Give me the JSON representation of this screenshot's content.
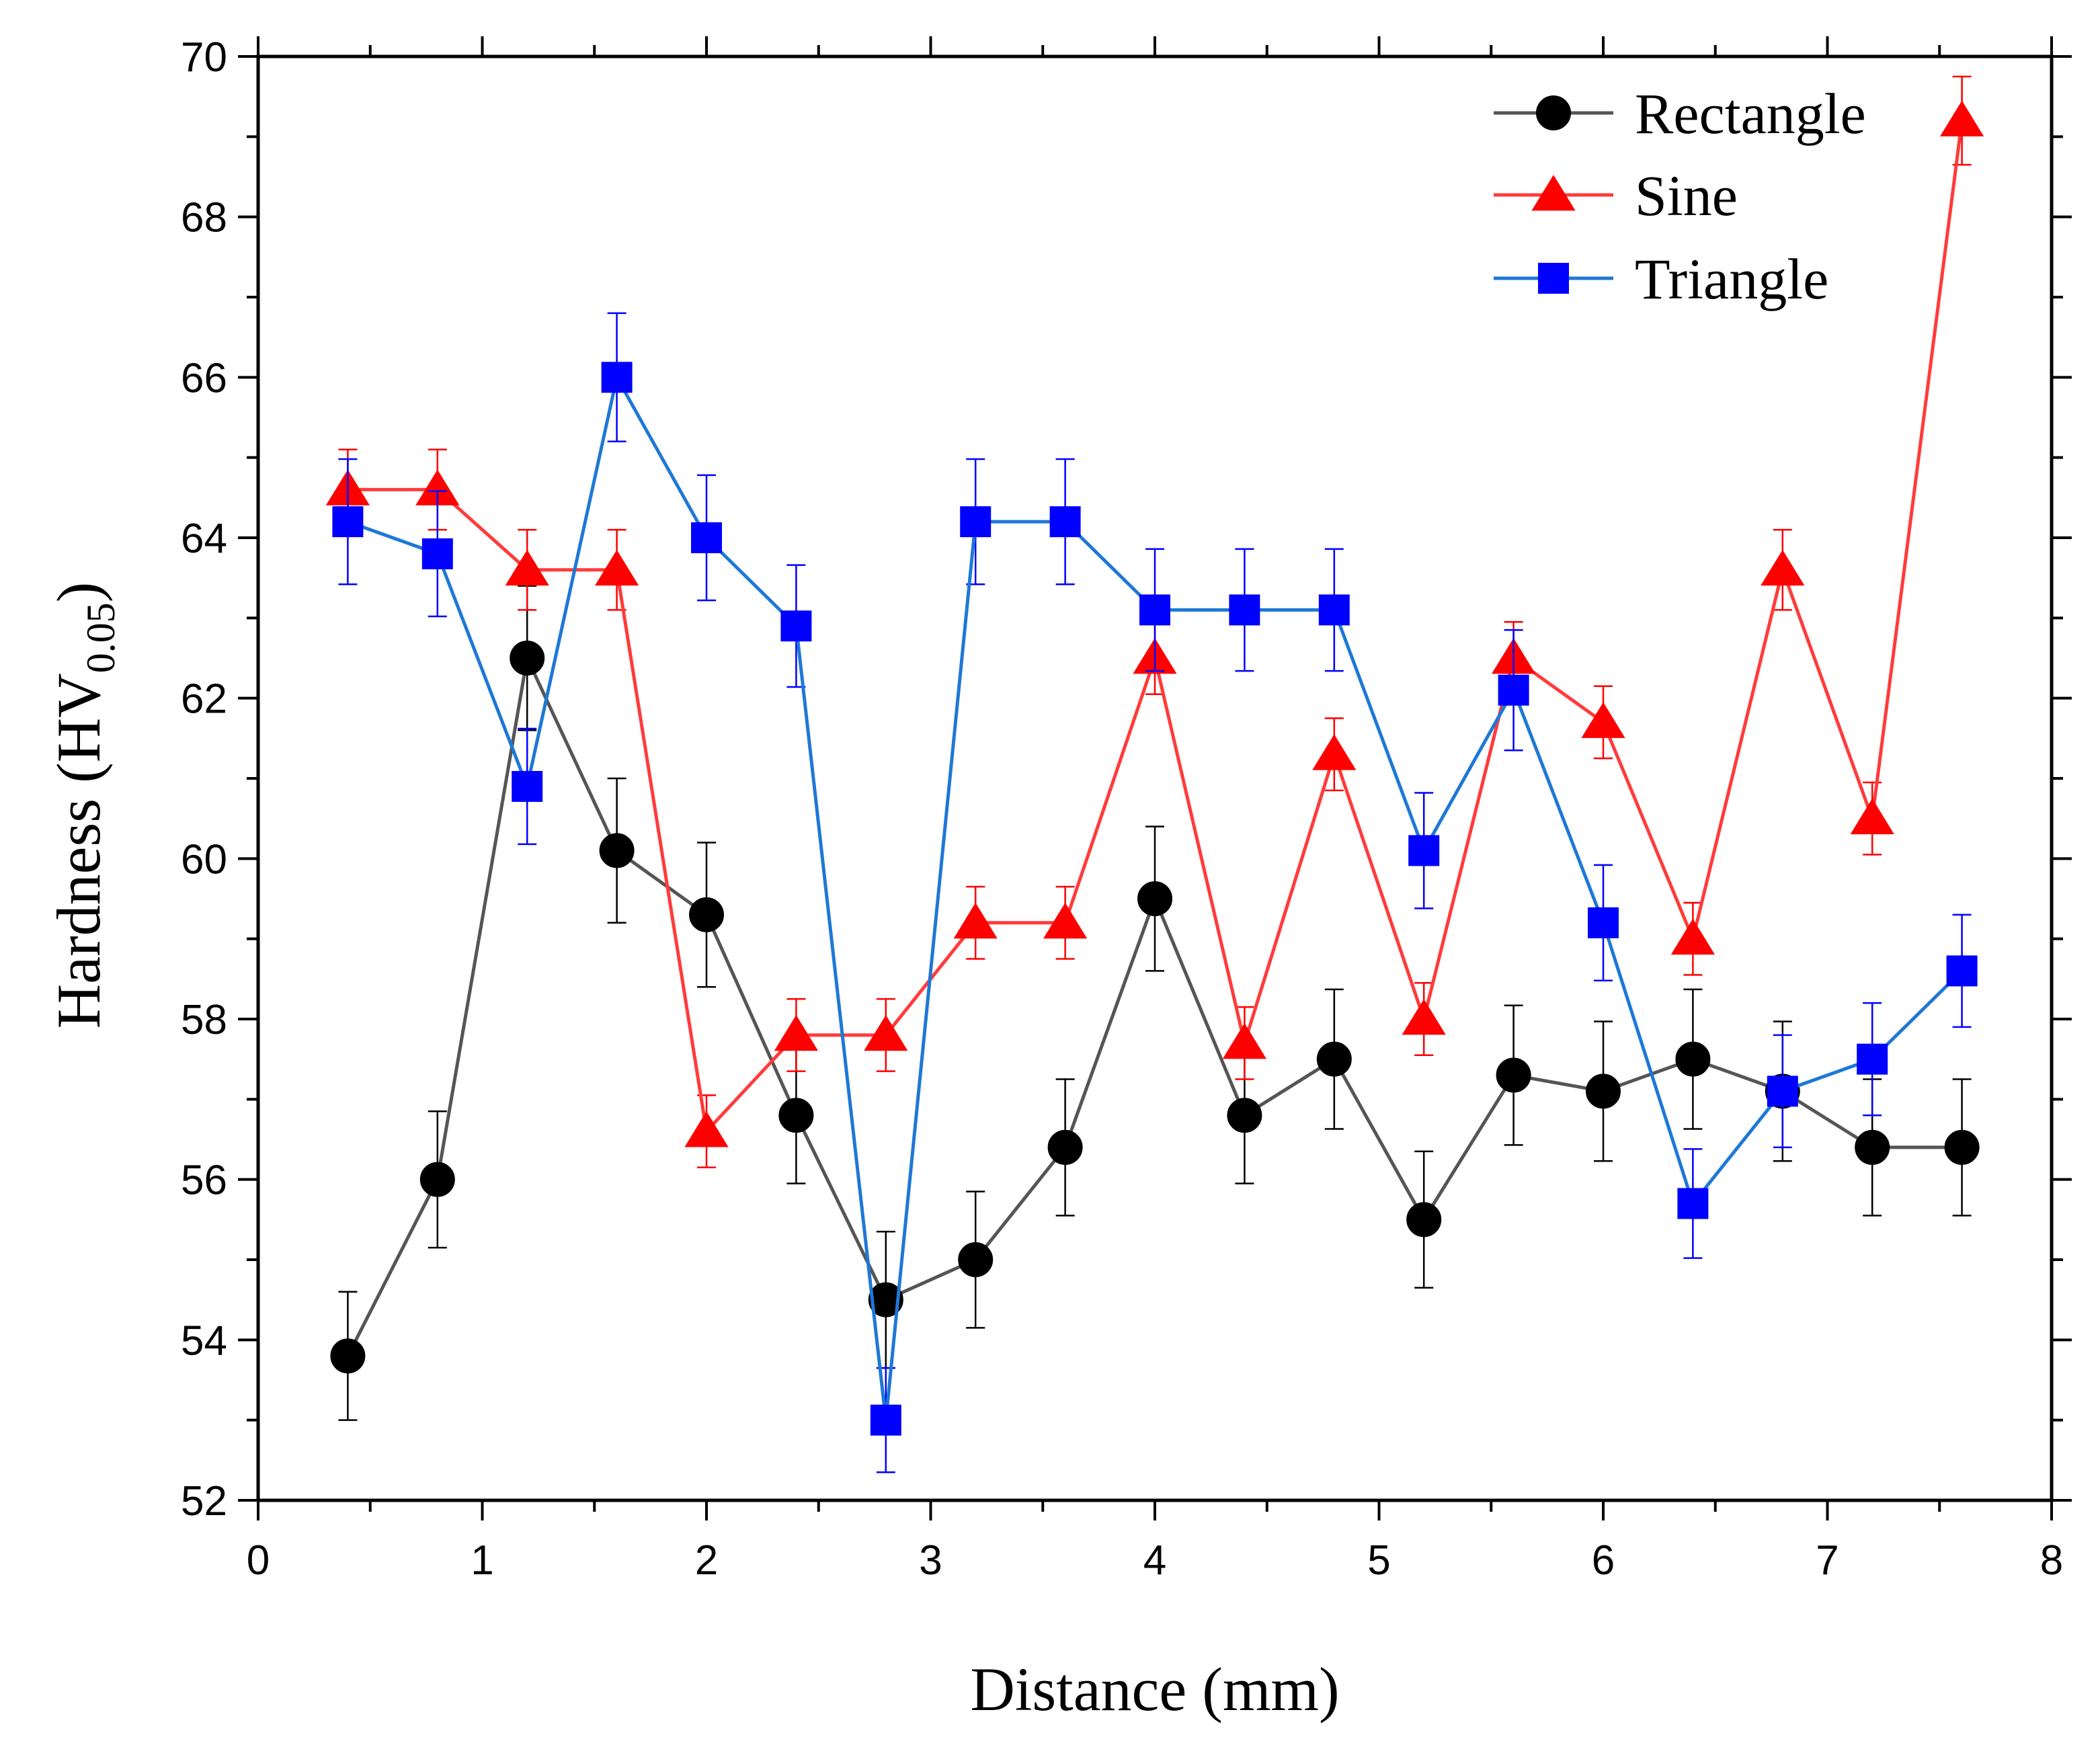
{
  "chart_data": {
    "type": "line",
    "title": "",
    "xlabel": "Distance (mm)",
    "ylabel": {
      "main": "Hardness (HV",
      "subscript": "0.05",
      "suffix": ")"
    },
    "xlim": [
      0,
      8
    ],
    "ylim": [
      52,
      70
    ],
    "x_ticks": [
      "0",
      "1",
      "2",
      "3",
      "4",
      "5",
      "6",
      "7",
      "8"
    ],
    "y_ticks": [
      "52",
      "54",
      "56",
      "58",
      "60",
      "62",
      "64",
      "66",
      "68",
      "70"
    ],
    "x": [
      0.4,
      0.8,
      1.2,
      1.6,
      2.0,
      2.4,
      2.8,
      3.2,
      3.6,
      4.0,
      4.4,
      4.8,
      5.2,
      5.6,
      6.0,
      6.4,
      6.8,
      7.2,
      7.6
    ],
    "grid": false,
    "legend": "top-right",
    "series": [
      {
        "name": "Rectangle",
        "marker": "circle",
        "line_color": "#555555",
        "marker_color": "#000000",
        "values": [
          53.8,
          56.0,
          62.5,
          60.1,
          59.3,
          56.8,
          54.5,
          55.0,
          56.4,
          59.5,
          56.8,
          57.5,
          55.5,
          57.3,
          57.1,
          57.5,
          57.1,
          56.4,
          56.4
        ],
        "errors": [
          0.8,
          0.85,
          0.9,
          0.9,
          0.9,
          0.85,
          0.85,
          0.85,
          0.85,
          0.9,
          0.85,
          0.87,
          0.85,
          0.87,
          0.87,
          0.87,
          0.87,
          0.85,
          0.85
        ]
      },
      {
        "name": "Sine",
        "marker": "triangle",
        "line_color": "#ff3b3b",
        "marker_color": "#ff0000",
        "values": [
          64.6,
          64.6,
          63.6,
          63.6,
          56.6,
          57.8,
          57.8,
          59.2,
          59.2,
          62.5,
          57.7,
          61.3,
          58.0,
          62.5,
          61.7,
          59.0,
          63.6,
          60.5,
          69.2
        ],
        "errors": [
          0.5,
          0.5,
          0.5,
          0.5,
          0.45,
          0.45,
          0.45,
          0.45,
          0.45,
          0.45,
          0.45,
          0.45,
          0.45,
          0.45,
          0.45,
          0.45,
          0.5,
          0.45,
          0.55
        ]
      },
      {
        "name": "Triangle",
        "marker": "square",
        "line_color": "#1e78d6",
        "marker_color": "#0000ff",
        "values": [
          64.2,
          63.8,
          60.9,
          66.0,
          64.0,
          62.9,
          53.0,
          64.2,
          64.2,
          63.1,
          63.1,
          63.1,
          60.1,
          62.1,
          59.2,
          55.7,
          57.1,
          57.5,
          58.6
        ],
        "errors": [
          0.78,
          0.78,
          0.72,
          0.8,
          0.78,
          0.76,
          0.65,
          0.78,
          0.78,
          0.76,
          0.76,
          0.76,
          0.72,
          0.75,
          0.72,
          0.68,
          0.7,
          0.7,
          0.7
        ]
      }
    ]
  }
}
